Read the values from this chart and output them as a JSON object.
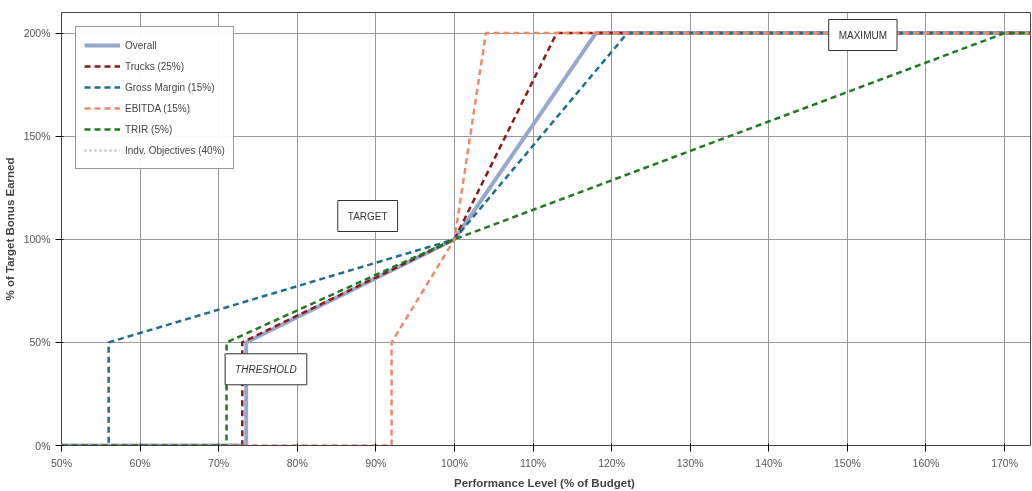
{
  "chart_data": {
    "type": "line",
    "xlabel": "Performance Level  (% of Budget)",
    "ylabel": "% of Target Bonus Earned",
    "xlim": [
      50,
      173.3
    ],
    "ylim": [
      0,
      210
    ],
    "xticks": [
      {
        "value": 50,
        "label": "50%"
      },
      {
        "value": 60,
        "label": "60%"
      },
      {
        "value": 70,
        "label": "70%"
      },
      {
        "value": 80,
        "label": "80%"
      },
      {
        "value": 90,
        "label": "90%"
      },
      {
        "value": 100,
        "label": "100%"
      },
      {
        "value": 110,
        "label": "110%"
      },
      {
        "value": 120,
        "label": "120%"
      },
      {
        "value": 130,
        "label": "130%"
      },
      {
        "value": 140,
        "label": "140%"
      },
      {
        "value": 150,
        "label": "150%"
      },
      {
        "value": 160,
        "label": "160%"
      },
      {
        "value": 170,
        "label": "170%"
      }
    ],
    "yticks": [
      {
        "value": 0,
        "label": "0%"
      },
      {
        "value": 50,
        "label": "50%"
      },
      {
        "value": 100,
        "label": "100%"
      },
      {
        "value": 150,
        "label": "150%"
      },
      {
        "value": 200,
        "label": "200%"
      }
    ],
    "grid": true,
    "legend": "top left",
    "marker": "none",
    "series": [
      {
        "name": "Overall",
        "color": "#95a9cc",
        "line_style": "solid",
        "x": [
          50,
          73.5,
          73.5,
          100,
          118,
          173.3
        ],
        "values": [
          0,
          0,
          50,
          100,
          200,
          200
        ]
      },
      {
        "name": "Trucks (25%)",
        "color": "#8b1a1a",
        "line_style": "dashed",
        "x": [
          50,
          73,
          73,
          100,
          113,
          173.3
        ],
        "values": [
          0,
          0,
          50,
          100,
          200,
          200
        ]
      },
      {
        "name": "Gross Margin (15%)",
        "color": "#1f6e8c",
        "line_style": "dashed",
        "x": [
          50,
          56,
          56,
          100,
          122,
          173.3
        ],
        "values": [
          0,
          0,
          50,
          100,
          200,
          200
        ]
      },
      {
        "name": "EBITDA (15%)",
        "color": "#f08a66",
        "line_style": "dashed",
        "x": [
          50,
          92,
          92,
          100,
          104,
          173.3
        ],
        "values": [
          0,
          0,
          50,
          100,
          200,
          200
        ]
      },
      {
        "name": "TRIR (5%)",
        "color": "#1e7a1e",
        "line_style": "dashed",
        "x": [
          50,
          71,
          71,
          100,
          170,
          173.3
        ],
        "values": [
          0,
          0,
          50,
          100,
          200,
          200
        ]
      },
      {
        "name": "Indv. Objectives (40%)",
        "color": "#c0c0c0",
        "line_style": "dotted"
      }
    ],
    "annotations": [
      "TARGET",
      "THRESHOLD",
      "MAXIMUM"
    ]
  }
}
